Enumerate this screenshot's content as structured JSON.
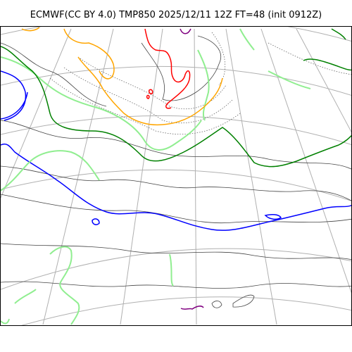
{
  "figure": {
    "title": "ECMWF(CC BY 4.0) TMP850 2025/12/11 12Z FT=48 (init 0912Z)"
  },
  "map": {
    "projection": "polar stereographic",
    "graticule_color": "#b0b0b0",
    "coastline_color": "#555555",
    "contour_colors": {
      "very_cold": "#800080",
      "cold": "#0000ff",
      "cool": "#90ee90",
      "mild": "#008000",
      "warm": "#ffa500",
      "hot": "#ff0000",
      "isotherm_minor": "#333333"
    }
  }
}
